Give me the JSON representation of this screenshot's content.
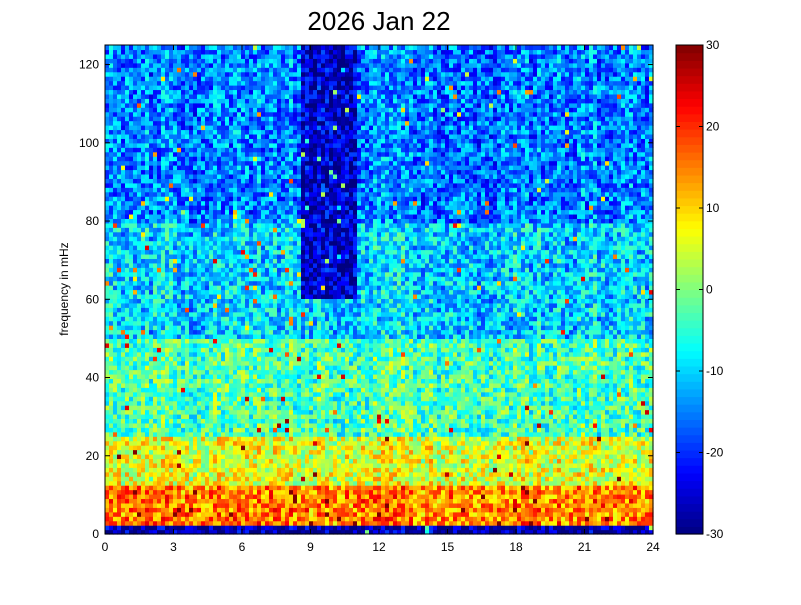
{
  "chart_data": {
    "type": "heatmap",
    "title": "2026 Jan 22",
    "xlabel": "",
    "ylabel": "frequency in mHz",
    "x_ticks": [
      "0",
      "3",
      "6",
      "9",
      "12",
      "15",
      "18",
      "21",
      "24"
    ],
    "y_ticks": [
      "0",
      "20",
      "40",
      "60",
      "80",
      "100",
      "120"
    ],
    "colorbar_ticks": [
      "30",
      "20",
      "10",
      "0",
      "-10",
      "-20",
      "-30"
    ],
    "xlim": [
      0,
      24
    ],
    "ylim": [
      0,
      125
    ],
    "clim": [
      -30,
      30
    ],
    "colormap": "jet",
    "grid": false,
    "approx_levels_db": [
      {
        "freq_band_mHz": [
          0,
          2
        ],
        "level": -28
      },
      {
        "freq_band_mHz": [
          2,
          12
        ],
        "level": 15
      },
      {
        "freq_band_mHz": [
          12,
          25
        ],
        "level": 6
      },
      {
        "freq_band_mHz": [
          25,
          50
        ],
        "level": -3
      },
      {
        "freq_band_mHz": [
          50,
          80
        ],
        "level": -10
      },
      {
        "freq_band_mHz": [
          80,
          125
        ],
        "level": -15
      }
    ],
    "features": [
      {
        "hours": [
          8.5,
          11
        ],
        "freq_mHz": [
          60,
          125
        ],
        "level": -25
      }
    ]
  }
}
